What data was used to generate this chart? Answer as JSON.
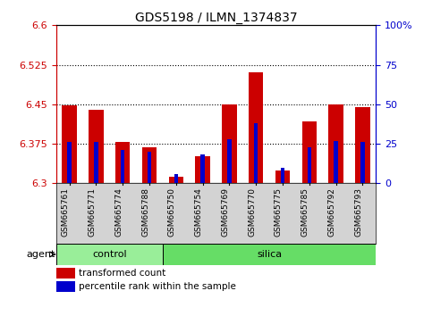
{
  "title": "GDS5198 / ILMN_1374837",
  "samples": [
    "GSM665761",
    "GSM665771",
    "GSM665774",
    "GSM665788",
    "GSM665750",
    "GSM665754",
    "GSM665769",
    "GSM665770",
    "GSM665775",
    "GSM665785",
    "GSM665792",
    "GSM665793"
  ],
  "groups": [
    "control",
    "control",
    "control",
    "control",
    "silica",
    "silica",
    "silica",
    "silica",
    "silica",
    "silica",
    "silica",
    "silica"
  ],
  "transformed_count": [
    6.448,
    6.44,
    6.378,
    6.368,
    6.312,
    6.352,
    6.45,
    6.51,
    6.325,
    6.418,
    6.45,
    6.445
  ],
  "percentile_rank": [
    26,
    26,
    21,
    20,
    6,
    18,
    28,
    38,
    10,
    23,
    27,
    26
  ],
  "ylim_left": [
    6.3,
    6.6
  ],
  "ylim_right": [
    0,
    100
  ],
  "yticks_left": [
    6.3,
    6.375,
    6.45,
    6.525,
    6.6
  ],
  "yticks_right": [
    0,
    25,
    50,
    75,
    100
  ],
  "ytick_labels_left": [
    "6.3",
    "6.375",
    "6.45",
    "6.525",
    "6.6"
  ],
  "ytick_labels_right": [
    "0",
    "25",
    "50",
    "75",
    "100%"
  ],
  "bar_color_red": "#cc0000",
  "bar_color_blue": "#0000cc",
  "axis_color_left": "#cc0000",
  "axis_color_right": "#0000cc",
  "control_color": "#99ee99",
  "silica_color": "#66dd66",
  "tick_bg_color": "#d3d3d3",
  "agent_label": "agent",
  "legend_red": "transformed count",
  "legend_blue": "percentile rank within the sample",
  "ybase": 6.3,
  "red_bar_width": 0.55,
  "blue_bar_width": 0.15,
  "figsize": [
    4.83,
    3.54
  ],
  "dpi": 100,
  "n_control": 4,
  "n_silica": 8
}
